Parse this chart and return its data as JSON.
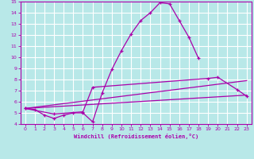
{
  "xlabel": "Windchill (Refroidissement éolien,°C)",
  "background_color": "#b8e8e8",
  "grid_color": "#ffffff",
  "line_color": "#aa00aa",
  "xlim": [
    -0.5,
    23.5
  ],
  "ylim": [
    4,
    15
  ],
  "yticks": [
    4,
    5,
    6,
    7,
    8,
    9,
    10,
    11,
    12,
    13,
    14,
    15
  ],
  "xticks": [
    0,
    1,
    2,
    3,
    4,
    5,
    6,
    7,
    8,
    9,
    10,
    11,
    12,
    13,
    14,
    15,
    16,
    17,
    18,
    19,
    20,
    21,
    22,
    23
  ],
  "series": [
    {
      "x": [
        0,
        1,
        2,
        3,
        4,
        5,
        6,
        7,
        8,
        9,
        10,
        11,
        12,
        13,
        14,
        15,
        16,
        17,
        18
      ],
      "y": [
        5.4,
        5.3,
        4.8,
        4.5,
        4.8,
        5.0,
        5.0,
        4.2,
        6.8,
        8.9,
        10.6,
        12.1,
        13.3,
        14.0,
        14.9,
        14.8,
        13.3,
        11.8,
        9.9
      ],
      "marker": true
    },
    {
      "x": [
        0,
        3,
        6,
        7,
        19,
        20,
        22,
        23
      ],
      "y": [
        5.4,
        4.9,
        5.1,
        7.3,
        8.1,
        8.2,
        7.1,
        6.5
      ],
      "marker": true
    },
    {
      "x": [
        0,
        23
      ],
      "y": [
        5.4,
        6.6
      ],
      "marker": false
    },
    {
      "x": [
        0,
        23
      ],
      "y": [
        5.4,
        7.9
      ],
      "marker": false
    }
  ]
}
